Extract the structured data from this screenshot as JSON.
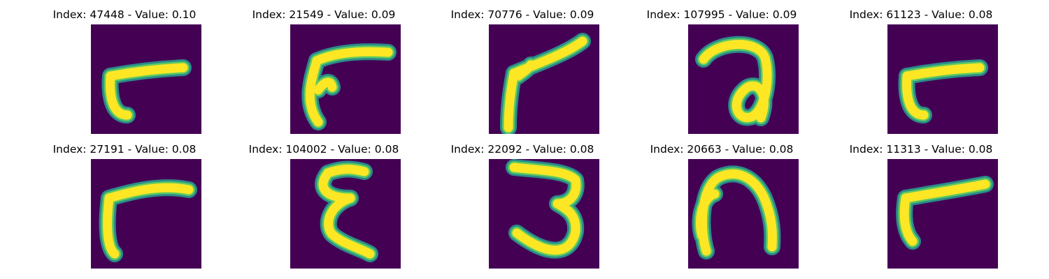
{
  "colormap": {
    "background": "#440154",
    "stroke_outer": "#2a8c8a",
    "stroke_mid": "#5ec962",
    "stroke_core": "#fde725"
  },
  "panels": [
    {
      "title": "Index: 47448 - Value: 0.10",
      "glyph": "angle-right"
    },
    {
      "title": "Index: 21549 - Value: 0.09",
      "glyph": "swoosh"
    },
    {
      "title": "Index: 70776 - Value: 0.09",
      "glyph": "angle-long"
    },
    {
      "title": "Index: 107995 - Value: 0.09",
      "glyph": "loop"
    },
    {
      "title": "Index: 61123 - Value: 0.08",
      "glyph": "angle-right"
    },
    {
      "title": "Index: 27191 - Value: 0.08",
      "glyph": "angle-thick"
    },
    {
      "title": "Index: 104002 - Value: 0.08",
      "glyph": "epsilon"
    },
    {
      "title": "Index: 22092 - Value: 0.08",
      "glyph": "three"
    },
    {
      "title": "Index: 20663 - Value: 0.08",
      "glyph": "arch"
    },
    {
      "title": "Index: 11313 - Value: 0.08",
      "glyph": "angle-slant"
    }
  ]
}
